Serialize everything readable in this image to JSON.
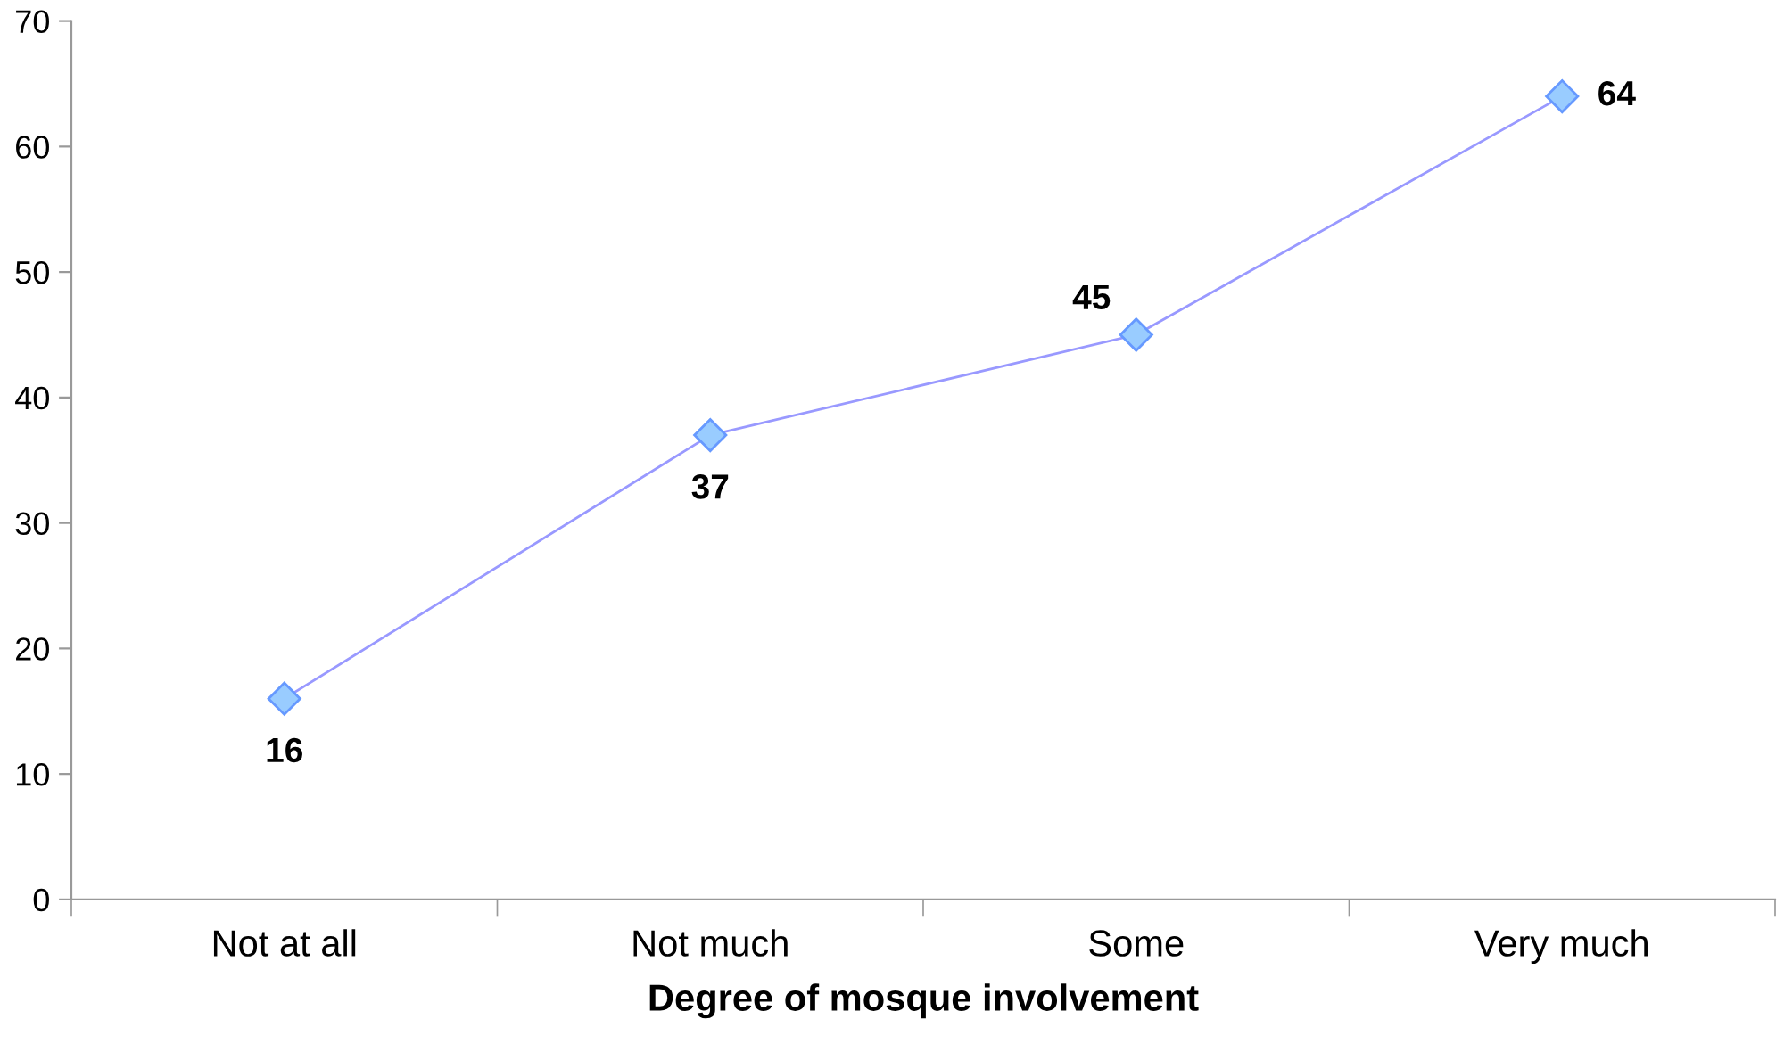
{
  "chart_data": {
    "type": "line",
    "xlabel": "Degree of mosque involvement",
    "categories": [
      "Not at all",
      "Not much",
      "Some",
      "Very much"
    ],
    "series": [
      {
        "color": "#9999ff",
        "values": [
          16,
          37,
          45,
          64
        ]
      }
    ],
    "marker": "diamond",
    "data_labels": true,
    "grid": false,
    "legend": false,
    "ylim": [
      0,
      70
    ],
    "yticks": [
      0,
      10,
      20,
      30,
      40,
      50,
      60,
      70
    ]
  }
}
